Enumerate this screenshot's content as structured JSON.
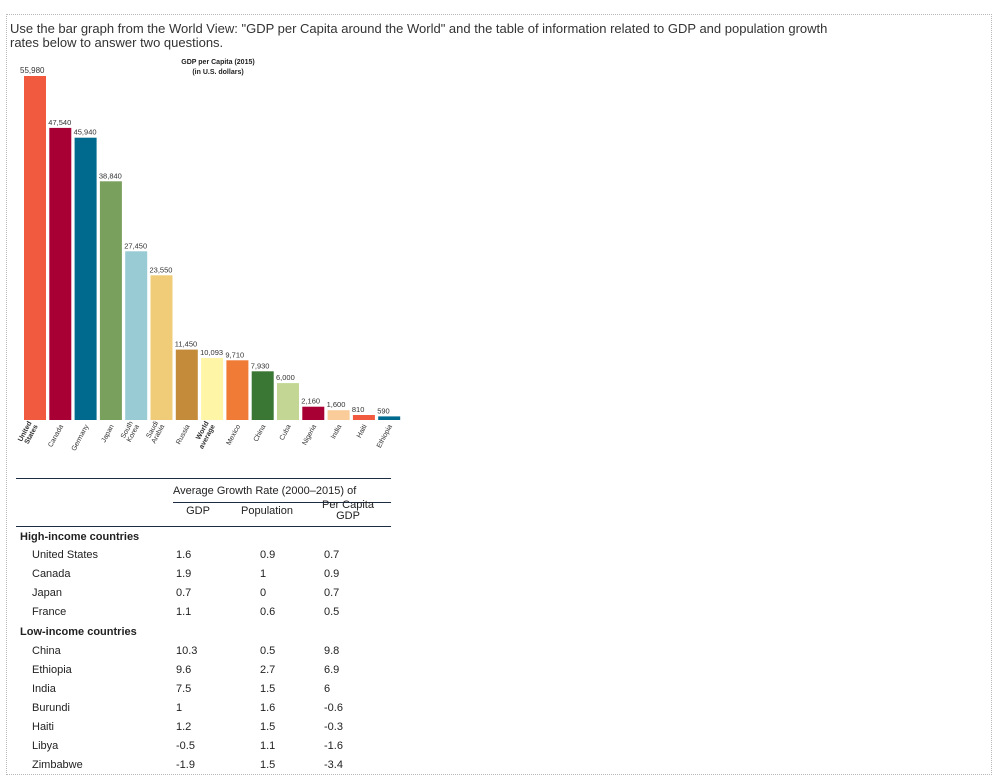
{
  "question": "Use the bar graph from the World View: \"GDP per Capita around the World\" and the table of information related to GDP and population growth rates below to answer two questions.",
  "chart_data": {
    "type": "bar",
    "title": "GDP per Capita (2015)",
    "subtitle": "(in U.S. dollars)",
    "top_label": "55,980",
    "categories": [
      "United States",
      "Canada",
      "Germany",
      "Japan",
      "South Korea",
      "Saudi Arabia",
      "Russia",
      "World average",
      "Mexico",
      "China",
      "Cuba",
      "Nigeria",
      "India",
      "Haiti",
      "Ethiopia"
    ],
    "values": [
      55980,
      47540,
      45940,
      38840,
      27450,
      23550,
      11450,
      10093,
      9710,
      7930,
      6000,
      2160,
      1600,
      810,
      590
    ],
    "value_labels": [
      "55,980",
      "47,540",
      "45,940",
      "38,840",
      "27,450",
      "23,550",
      "11,450",
      "10,093",
      "9,710",
      "7,930",
      "6,000",
      "2,160",
      "1,600",
      "810",
      "590"
    ],
    "bold_categories": [
      "United States",
      "World average"
    ],
    "colors": [
      "#f15a3f",
      "#a80034",
      "#006a8e",
      "#7aa05e",
      "#98cbd3",
      "#f0cc78",
      "#c48b3b",
      "#fff5a6",
      "#f07b36",
      "#3a7634",
      "#c3d694",
      "#a80034",
      "#f9cc9a",
      "#f15a3f",
      "#006a8e"
    ],
    "ylim": [
      0,
      55980
    ]
  },
  "table": {
    "group_header": "Average Growth Rate (2000–2015) of",
    "col_gdp": "GDP",
    "col_pop": "Population",
    "col_pc_line1": "Per Capita",
    "col_pc_line2": "GDP",
    "high_title": "High-income countries",
    "low_title": "Low-income countries",
    "high": [
      {
        "name": "United States",
        "gdp": "1.6",
        "pop": "0.9",
        "pc": "0.7"
      },
      {
        "name": "Canada",
        "gdp": "1.9",
        "pop": "1",
        "pc": "0.9"
      },
      {
        "name": "Japan",
        "gdp": "0.7",
        "pop": "0",
        "pc": "0.7"
      },
      {
        "name": "France",
        "gdp": "1.1",
        "pop": "0.6",
        "pc": "0.5"
      }
    ],
    "low": [
      {
        "name": "China",
        "gdp": "10.3",
        "pop": "0.5",
        "pc": "9.8"
      },
      {
        "name": "Ethiopia",
        "gdp": "9.6",
        "pop": "2.7",
        "pc": "6.9"
      },
      {
        "name": "India",
        "gdp": "7.5",
        "pop": "1.5",
        "pc": "6"
      },
      {
        "name": "Burundi",
        "gdp": "1",
        "pop": "1.6",
        "pc": "-0.6"
      },
      {
        "name": "Haiti",
        "gdp": "1.2",
        "pop": "1.5",
        "pc": "-0.3"
      },
      {
        "name": "Libya",
        "gdp": "-0.5",
        "pop": "1.1",
        "pc": "-1.6"
      },
      {
        "name": "Zimbabwe",
        "gdp": "-1.9",
        "pop": "1.5",
        "pc": "-3.4"
      }
    ]
  }
}
